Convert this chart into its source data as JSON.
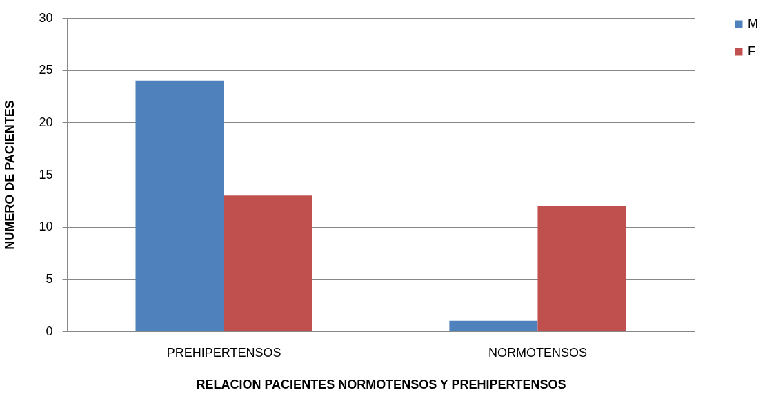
{
  "chart_data": {
    "type": "bar",
    "xlabel": "RELACION PACIENTES NORMOTENSOS Y PREHIPERTENSOS",
    "ylabel": "NUMERO DE PACIENTES",
    "categories": [
      "PREHIPERTENSOS",
      "NORMOTENSOS"
    ],
    "series": [
      {
        "name": "M",
        "color": "#4f81bd",
        "values": [
          24,
          1
        ]
      },
      {
        "name": "F",
        "color": "#c0504d",
        "values": [
          13,
          12
        ]
      }
    ],
    "ylim": [
      0,
      30
    ],
    "yticks": [
      0,
      5,
      10,
      15,
      20,
      25,
      30
    ],
    "grid": "y",
    "legend": "right"
  }
}
